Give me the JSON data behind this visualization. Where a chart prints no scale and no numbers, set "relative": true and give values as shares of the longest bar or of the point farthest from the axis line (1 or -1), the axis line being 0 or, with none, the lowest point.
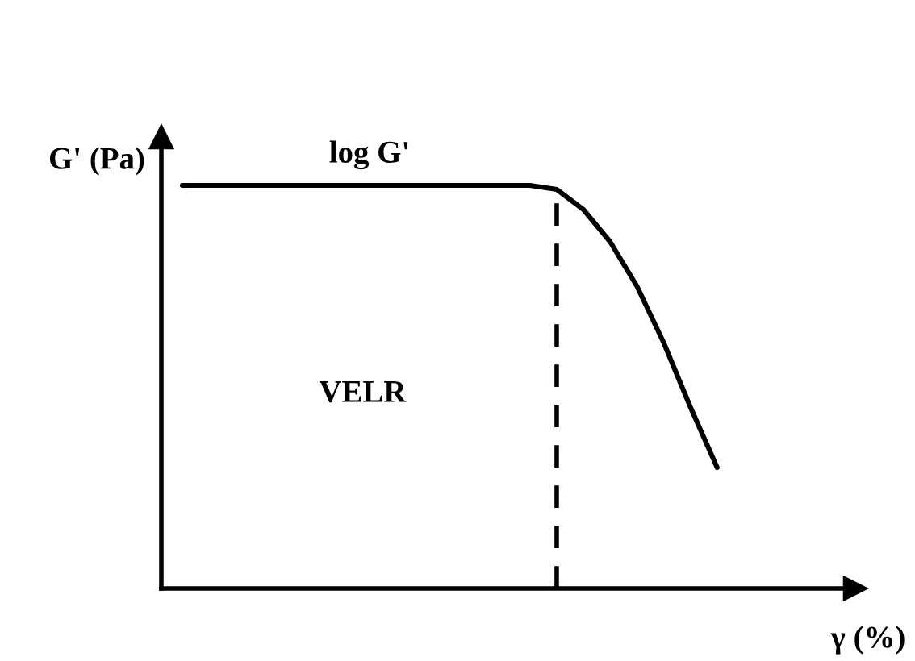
{
  "chart_data": {
    "type": "line",
    "relative": true,
    "xlabel": "γ (%)",
    "ylabel": "G' (Pa)",
    "categories": [
      null,
      null,
      null,
      null,
      null,
      null,
      null,
      null,
      null,
      null,
      null,
      null,
      null,
      null,
      null,
      null,
      null,
      null,
      null,
      null,
      null,
      null,
      null,
      null,
      null,
      null
    ],
    "series": [
      {
        "color": "#000000",
        "values": [
          1,
          1,
          1,
          1,
          1,
          1,
          1,
          1,
          1,
          1,
          1,
          1,
          1,
          1,
          0.99,
          0.94,
          0.86,
          0.75,
          0.61,
          0.45,
          0.3,
          null,
          null,
          null,
          null,
          null
        ]
      }
    ],
    "annotations": [
      "log G'",
      "VELR"
    ],
    "legend": false,
    "marker": "none",
    "line_style": "solid"
  }
}
